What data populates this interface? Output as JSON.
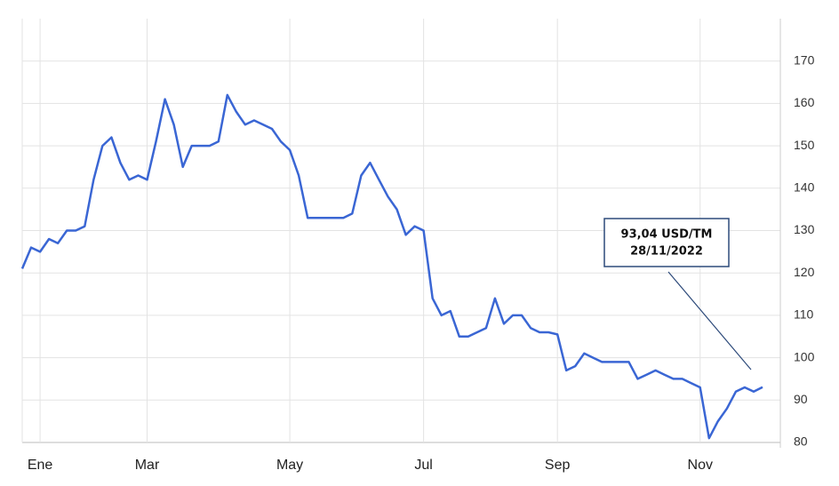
{
  "chart_data": {
    "type": "line",
    "categories": [
      null,
      null,
      "Ene",
      null,
      null,
      null,
      null,
      null,
      null,
      null,
      null,
      null,
      null,
      null,
      "Mar",
      null,
      null,
      null,
      null,
      null,
      null,
      null,
      null,
      null,
      null,
      null,
      null,
      null,
      null,
      null,
      "May",
      null,
      null,
      null,
      null,
      null,
      null,
      null,
      null,
      null,
      null,
      null,
      null,
      null,
      null,
      "Jul",
      null,
      null,
      null,
      null,
      null,
      null,
      null,
      null,
      null,
      null,
      null,
      null,
      null,
      null,
      "Sep",
      null,
      null,
      null,
      null,
      null,
      null,
      null,
      null,
      null,
      null,
      null,
      null,
      null,
      null,
      null,
      "Nov",
      null,
      null,
      null,
      null,
      null,
      null,
      null
    ],
    "series": [
      {
        "color": "#3a66d4",
        "values": [
          121,
          126,
          125,
          128,
          127,
          130,
          130,
          131,
          142,
          150,
          152,
          146,
          142,
          143,
          142,
          151,
          161,
          155,
          145,
          150,
          150,
          150,
          151,
          162,
          158,
          155,
          156,
          155,
          154,
          151,
          149,
          143,
          133,
          133,
          133,
          133,
          133,
          134,
          143,
          146,
          142,
          138,
          135,
          129,
          131,
          130,
          114,
          110,
          111,
          105,
          105,
          106,
          107,
          114,
          108,
          110,
          110,
          107,
          106,
          106,
          105.5,
          97,
          98,
          101,
          100,
          99,
          99,
          99,
          99,
          95,
          96,
          97,
          96,
          95,
          95,
          94,
          93,
          81,
          85,
          88,
          92,
          93,
          92,
          93.04
        ]
      }
    ],
    "ylim": [
      80,
      180
    ],
    "yticks": [
      80,
      90,
      100,
      110,
      120,
      130,
      140,
      150,
      160,
      170
    ],
    "grid": true,
    "annotations": [
      "93,04 USD/TM",
      "28/11/2022"
    ]
  }
}
